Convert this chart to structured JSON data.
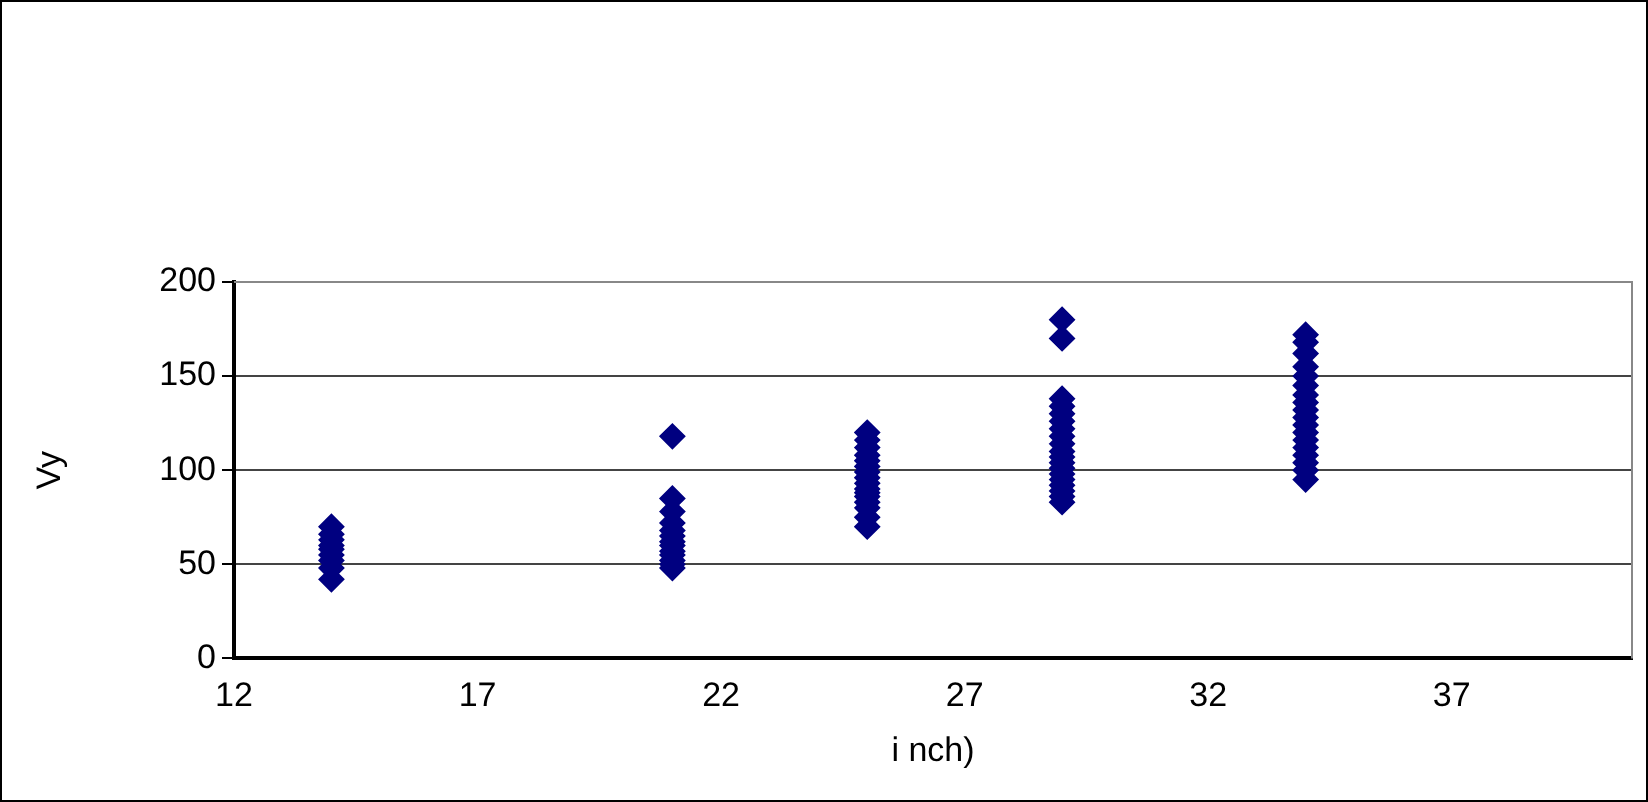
{
  "chart_data": {
    "type": "scatter",
    "xlabel": "i nch)",
    "ylabel": "Vy",
    "series": [
      {
        "color": "#000080",
        "x": [
          14,
          14,
          14,
          14,
          14,
          14,
          14,
          14,
          14,
          21,
          21,
          21,
          21,
          21,
          21,
          21,
          21,
          21,
          21,
          21,
          21,
          21,
          25,
          25,
          25,
          25,
          25,
          25,
          25,
          25,
          25,
          25,
          25,
          25,
          25,
          25,
          25,
          25,
          29,
          29,
          29,
          29,
          29,
          29,
          29,
          29,
          29,
          29,
          29,
          29,
          29,
          29,
          29,
          29,
          29,
          29,
          29,
          34,
          34,
          34,
          34,
          34,
          34,
          34,
          34,
          34,
          34,
          34,
          34,
          34,
          34,
          34,
          34,
          34,
          34
        ],
        "values": [
          42,
          48,
          52,
          55,
          58,
          60,
          63,
          66,
          70,
          48,
          50,
          52,
          55,
          57,
          60,
          62,
          65,
          68,
          72,
          78,
          85,
          118,
          70,
          75,
          80,
          83,
          86,
          88,
          90,
          93,
          96,
          99,
          102,
          105,
          108,
          112,
          116,
          120,
          83,
          86,
          89,
          92,
          95,
          98,
          101,
          104,
          107,
          110,
          114,
          118,
          122,
          126,
          130,
          134,
          138,
          170,
          180,
          95,
          100,
          104,
          108,
          112,
          116,
          120,
          124,
          128,
          132,
          136,
          140,
          145,
          150,
          155,
          162,
          168,
          172
        ]
      }
    ],
    "xlim": [
      12,
      40.7
    ],
    "xticks": [
      12,
      17,
      22,
      27,
      32,
      37
    ],
    "ylim": [
      0,
      200
    ],
    "yticks": [
      0,
      50,
      100,
      150,
      200
    ],
    "grid": "y",
    "marker": "diamond",
    "legend": false
  }
}
